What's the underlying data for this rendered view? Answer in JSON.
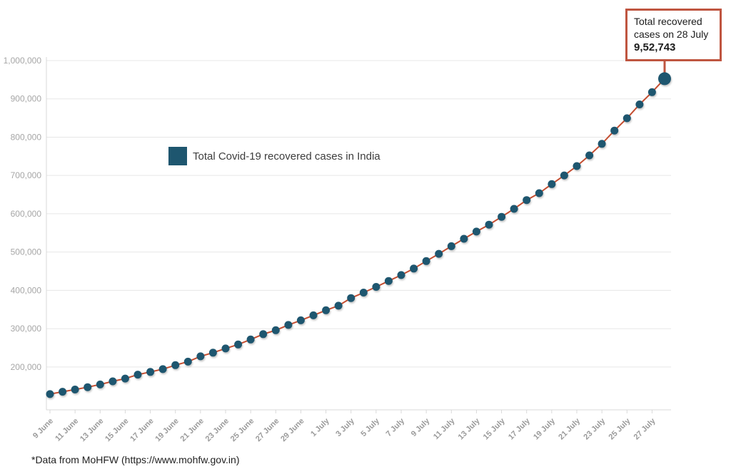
{
  "legend": {
    "label": "Total Covid-19 recovered cases in India"
  },
  "annotation": {
    "line1": "Total recovered",
    "line2": "cases on 28 July",
    "value": "9,52,743"
  },
  "footnote": "*Data from MoHFW (https://www.mohfw.gov.in)",
  "colors": {
    "point": "#1e566f",
    "line": "#c44e31",
    "annotation_border": "#bf5540",
    "grid": "#e7e7e7",
    "axis": "#d9d9d9",
    "ytick_label": "#a6a6a6",
    "xtick_label": "#9a9a9a",
    "legend_text": "#3d3d3d"
  },
  "chart_data": {
    "type": "line",
    "title": "",
    "xlabel": "",
    "ylabel": "",
    "legend_entries": [
      "Total Covid-19 recovered cases in India"
    ],
    "legend_position": "inside-left",
    "grid": "horizontal",
    "ylim": [
      88000,
      1000000
    ],
    "yticks": [
      200000,
      300000,
      400000,
      500000,
      600000,
      700000,
      800000,
      900000,
      1000000
    ],
    "ytick_labels": [
      "200,000",
      "300,000",
      "400,000",
      "500,000",
      "600,000",
      "700,000",
      "800,000",
      "900,000",
      "1,000,000"
    ],
    "xtick_every": 2,
    "x": [
      "9 June",
      "10 June",
      "11 June",
      "12 June",
      "13 June",
      "14 June",
      "15 June",
      "16 June",
      "17 June",
      "18 June",
      "19 June",
      "20 June",
      "21 June",
      "22 June",
      "23 June",
      "24 June",
      "25 June",
      "26 June",
      "27 June",
      "28 June",
      "29 June",
      "30 June",
      "1 July",
      "2 July",
      "3 July",
      "4 July",
      "5 July",
      "6 July",
      "7 July",
      "8 July",
      "9 July",
      "10 July",
      "11 July",
      "12 July",
      "13 July",
      "14 July",
      "15 July",
      "16 July",
      "17 July",
      "18 July",
      "19 July",
      "20 July",
      "21 July",
      "22 July",
      "23 July",
      "24 July",
      "25 July",
      "26 July",
      "27 July",
      "28 July"
    ],
    "values": [
      129215,
      135206,
      141029,
      147195,
      154330,
      162379,
      169798,
      180013,
      186935,
      194325,
      204711,
      213831,
      227756,
      237196,
      248190,
      258685,
      271697,
      285637,
      295881,
      309713,
      321723,
      334822,
      347979,
      359860,
      379892,
      394227,
      409083,
      424433,
      439948,
      456831,
      476378,
      495513,
      515386,
      534620,
      553471,
      571460,
      592032,
      612815,
      635757,
      653751,
      677423,
      700087,
      724578,
      752393,
      782607,
      817209,
      849432,
      885573,
      917568,
      952743
    ],
    "annotated_point": {
      "x": "28 July",
      "value": 952743
    }
  }
}
